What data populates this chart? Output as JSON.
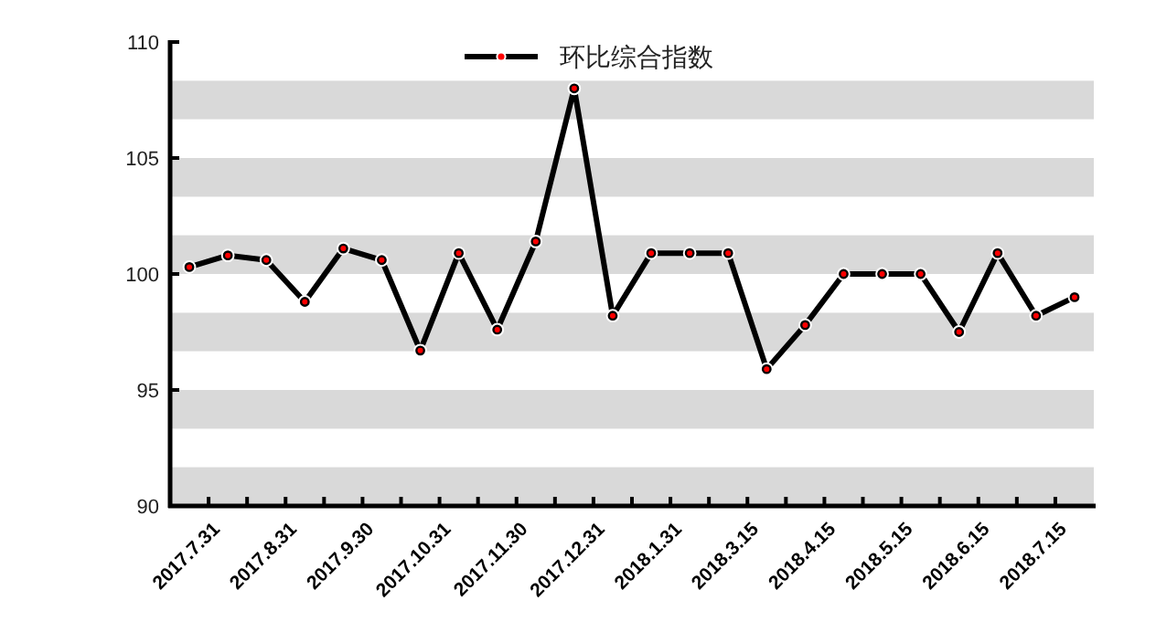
{
  "chart_data": {
    "type": "line",
    "categories": [
      "2017.7.31",
      null,
      "2017.8.31",
      null,
      "2017.9.30",
      null,
      "2017.10.31",
      null,
      "2017.11.30",
      null,
      "2017.12.31",
      null,
      "2018.1.31",
      null,
      "2018.3.15",
      null,
      "2018.4.15",
      null,
      "2018.5.15",
      null,
      "2018.6.15",
      null,
      "2018.7.15",
      null
    ],
    "series": [
      {
        "name": "环比综合指数",
        "color": "#000000",
        "values": [
          100.3,
          100.8,
          100.6,
          98.8,
          101.1,
          100.6,
          96.7,
          100.9,
          97.6,
          101.4,
          108.0,
          98.2,
          100.9,
          100.9,
          100.9,
          95.9,
          97.8,
          100.0,
          100.0,
          100.0,
          97.5,
          100.9,
          98.2,
          99.0
        ]
      }
    ],
    "ylim": [
      90,
      110
    ],
    "yticks": [
      90,
      95,
      100,
      105,
      110
    ],
    "bands": [
      {
        "axis": "y",
        "from": 90,
        "to": 91.67,
        "color": "#d9d9d9"
      },
      {
        "axis": "y",
        "from": 93.33,
        "to": 95,
        "color": "#d9d9d9"
      },
      {
        "axis": "y",
        "from": 96.67,
        "to": 98.33,
        "color": "#d9d9d9"
      },
      {
        "axis": "y",
        "from": 100,
        "to": 101.67,
        "color": "#d9d9d9"
      },
      {
        "axis": "y",
        "from": 103.33,
        "to": 105,
        "color": "#d9d9d9"
      },
      {
        "axis": "y",
        "from": 106.67,
        "to": 108.33,
        "color": "#d9d9d9"
      }
    ],
    "marker": "circle",
    "line_style": "solid",
    "legend": "top",
    "grid": false
  }
}
